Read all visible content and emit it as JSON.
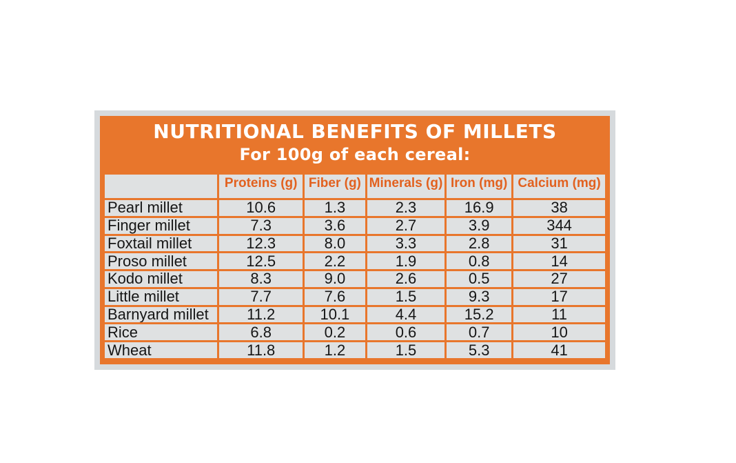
{
  "label": {
    "title": "NUTRITIONAL BENEFITS OF MILLETS",
    "subtitle": "For 100g of each cereal:"
  },
  "colors": {
    "accent": "#e8762c",
    "header_text": "#e2611f",
    "cell_bg": "#dfe1e2"
  },
  "table": {
    "headers": [
      "Proteins (g)",
      "Fiber (g)",
      "Minerals (g)",
      "Iron (mg)",
      "Calcium (mg)"
    ],
    "rows": [
      {
        "name": "Pearl millet",
        "values": [
          "10.6",
          "1.3",
          "2.3",
          "16.9",
          "38"
        ]
      },
      {
        "name": "Finger millet",
        "values": [
          "7.3",
          "3.6",
          "2.7",
          "3.9",
          "344"
        ]
      },
      {
        "name": "Foxtail millet",
        "values": [
          "12.3",
          "8.0",
          "3.3",
          "2.8",
          "31"
        ]
      },
      {
        "name": "Proso millet",
        "values": [
          "12.5",
          "2.2",
          "1.9",
          "0.8",
          "14"
        ]
      },
      {
        "name": "Kodo millet",
        "values": [
          "8.3",
          "9.0",
          "2.6",
          "0.5",
          "27"
        ]
      },
      {
        "name": "Little millet",
        "values": [
          "7.7",
          "7.6",
          "1.5",
          "9.3",
          "17"
        ]
      },
      {
        "name": "Barnyard millet",
        "values": [
          "11.2",
          "10.1",
          "4.4",
          "15.2",
          "11"
        ]
      },
      {
        "name": "Rice",
        "values": [
          "6.8",
          "0.2",
          "0.6",
          "0.7",
          "10"
        ]
      },
      {
        "name": "Wheat",
        "values": [
          "11.8",
          "1.2",
          "1.5",
          "5.3",
          "41"
        ]
      }
    ]
  }
}
